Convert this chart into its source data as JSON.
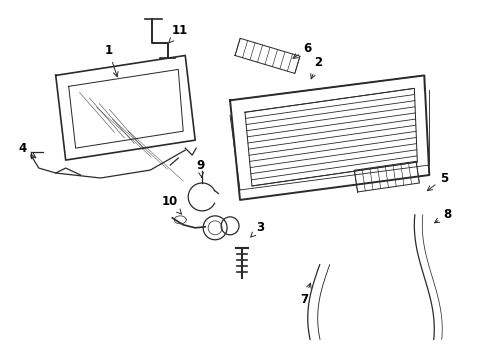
{
  "background_color": "#ffffff",
  "line_color": "#2a2a2a",
  "label_color": "#000000",
  "label_fontsize": 8.5,
  "figsize": [
    4.89,
    3.6
  ],
  "dpi": 100,
  "xlim": [
    0,
    489
  ],
  "ylim": [
    0,
    360
  ]
}
